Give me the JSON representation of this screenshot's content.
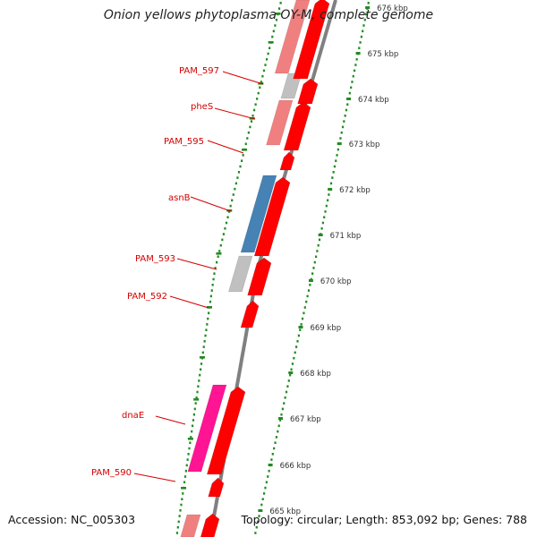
{
  "title": "Onion yellows phytoplasma OY-M, complete genome",
  "footer": {
    "accession": "Accession: NC_005303",
    "topology": "Topology: circular; Length: 853,092 bp; Genes: 788"
  },
  "ruler_labels": [
    {
      "kbp": 676,
      "label": "676 kbp",
      "faded": true
    },
    {
      "kbp": 675,
      "label": "675 kbp"
    },
    {
      "kbp": 674,
      "label": "674 kbp"
    },
    {
      "kbp": 673,
      "label": "673 kbp"
    },
    {
      "kbp": 672,
      "label": "672 kbp"
    },
    {
      "kbp": 671,
      "label": "671 kbp"
    },
    {
      "kbp": 670,
      "label": "670 kbp"
    },
    {
      "kbp": 669,
      "label": "669 kbp"
    },
    {
      "kbp": 668,
      "label": "668 kbp"
    },
    {
      "kbp": 667,
      "label": "667 kbp"
    },
    {
      "kbp": 666,
      "label": "666 kbp"
    },
    {
      "kbp": 665,
      "label": "665 kbp"
    }
  ],
  "gene_labels": [
    "PAM_597",
    "pheS",
    "PAM_595",
    "asnB",
    "PAM_593",
    "PAM_592",
    "dnaE",
    "PAM_590"
  ],
  "colors": {
    "cds": "#ff0000",
    "cog_pink": "#f08080",
    "cog_gray": "#c0c0c0",
    "cog_blue": "#4682b4",
    "cog_magenta": "#ff1493",
    "gc_ticks": "#228b22",
    "backbone": "#808080",
    "label": "#d40000"
  }
}
